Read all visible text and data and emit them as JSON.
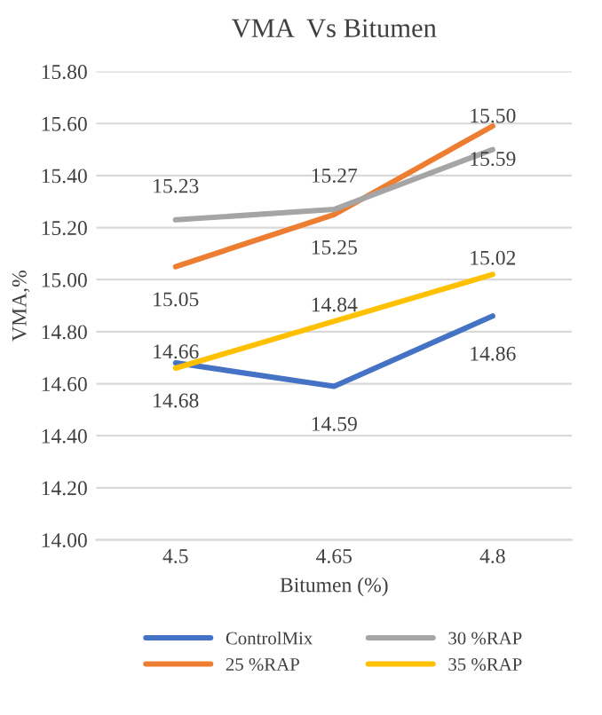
{
  "chart_data": {
    "type": "line",
    "title": "VMA  Vs Bitumen",
    "xlabel": "Bitumen (%)",
    "ylabel": "VMA,%",
    "categories": [
      "4.5",
      "4.65",
      "4.8"
    ],
    "series": [
      {
        "name": "ControlMix",
        "color": "#4472c4",
        "values": [
          14.68,
          14.59,
          14.86
        ],
        "value_labels": [
          "14.68",
          "14.59",
          "14.86"
        ]
      },
      {
        "name": "25 %RAP",
        "color": "#ed7d31",
        "values": [
          15.05,
          15.25,
          15.59
        ],
        "value_labels": [
          "15.05",
          "15.25",
          "15.59"
        ]
      },
      {
        "name": "30 %RAP",
        "color": "#a5a5a5",
        "values": [
          15.23,
          15.27,
          15.5
        ],
        "value_labels": [
          "15.23",
          "15.27",
          "15.50"
        ]
      },
      {
        "name": "35 %RAP",
        "color": "#ffc000",
        "values": [
          14.66,
          14.84,
          15.02
        ],
        "value_labels": [
          "14.66",
          "14.84",
          "15.02"
        ]
      }
    ],
    "ylim": [
      14.0,
      15.8
    ],
    "yticks": [
      {
        "value": 14.0,
        "label": "14.00"
      },
      {
        "value": 14.2,
        "label": "14.20"
      },
      {
        "value": 14.4,
        "label": "14.40"
      },
      {
        "value": 14.6,
        "label": "14.60"
      },
      {
        "value": 14.8,
        "label": "14.80"
      },
      {
        "value": 15.0,
        "label": "15.00"
      },
      {
        "value": 15.2,
        "label": "15.20"
      },
      {
        "value": 15.4,
        "label": "15.40"
      },
      {
        "value": 15.6,
        "label": "15.60"
      },
      {
        "value": 15.8,
        "label": "15.80"
      }
    ],
    "grid": "y",
    "legend": "bottom",
    "marker": "none",
    "line_style": "solid"
  }
}
